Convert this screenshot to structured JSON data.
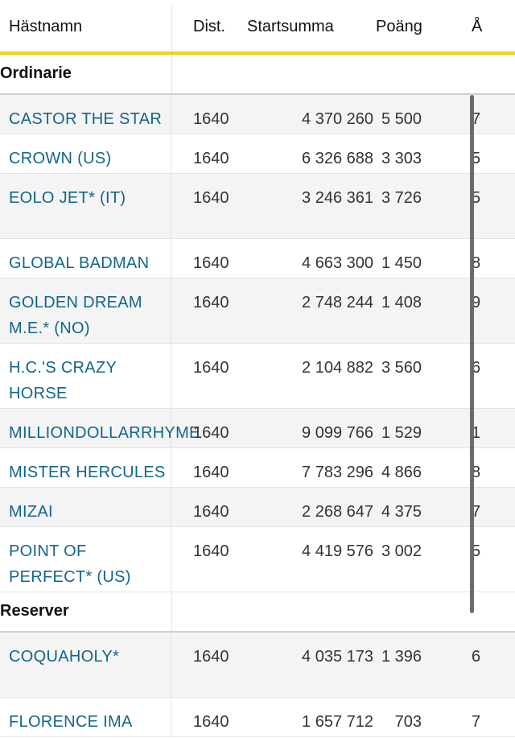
{
  "columns": {
    "name": "Hästnamn",
    "dist": "Dist.",
    "sum": "Startsumma",
    "points": "Poäng",
    "age": "Å"
  },
  "sections": [
    {
      "label": "Ordinarie",
      "rows": [
        {
          "name_lines": [
            "CASTOR THE STAR"
          ],
          "dist": "1640",
          "sum": "4 370 260",
          "points": "5 500",
          "age": "7"
        },
        {
          "name_lines": [
            "CROWN (US)"
          ],
          "dist": "1640",
          "sum": "6 326 688",
          "points": "3 303",
          "age": "5"
        },
        {
          "name_lines": [
            "EOLO JET* (IT)"
          ],
          "dist": "1640",
          "sum": "3 246 361",
          "points": "3 726",
          "age": "5",
          "tall": true
        },
        {
          "name_lines": [
            "GLOBAL BADMAN"
          ],
          "dist": "1640",
          "sum": "4 663 300",
          "points": "1 450",
          "age": "8"
        },
        {
          "name_lines": [
            "GOLDEN DREAM",
            "M.E.* (NO)"
          ],
          "dist": "1640",
          "sum": "2 748 244",
          "points": "1 408",
          "age": "9"
        },
        {
          "name_lines": [
            "H.C.'S CRAZY",
            "HORSE"
          ],
          "dist": "1640",
          "sum": "2 104 882",
          "points": "3 560",
          "age": "6"
        },
        {
          "name_lines": [
            "MILLIONDOLLARRHYME"
          ],
          "dist": "1640",
          "sum": "9 099 766",
          "points": "1 529",
          "age": "1"
        },
        {
          "name_lines": [
            "MISTER HERCULES"
          ],
          "dist": "1640",
          "sum": "7 783 296",
          "points": "4 866",
          "age": "8"
        },
        {
          "name_lines": [
            "MIZAI"
          ],
          "dist": "1640",
          "sum": "2 268 647",
          "points": "4 375",
          "age": "7"
        },
        {
          "name_lines": [
            "POINT OF",
            "PERFECT* (US)"
          ],
          "dist": "1640",
          "sum": "4 419 576",
          "points": "3 002",
          "age": "5"
        }
      ]
    },
    {
      "label": "Reserver",
      "rows": [
        {
          "name_lines": [
            "COQUAHOLY*"
          ],
          "dist": "1640",
          "sum": "4 035 173",
          "points": "1 396",
          "age": "6",
          "tall": true
        },
        {
          "name_lines": [
            "FLORENCE IMA"
          ],
          "dist": "1640",
          "sum": "1 657 712",
          "points": "703",
          "age": "7"
        }
      ]
    }
  ]
}
